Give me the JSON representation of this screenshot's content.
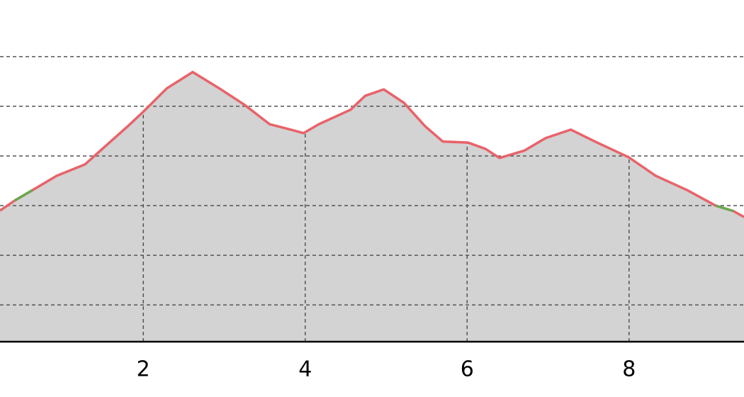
{
  "chart_data": {
    "type": "area",
    "x": [
      0.23,
      0.41,
      0.63,
      0.93,
      1.28,
      1.54,
      1.81,
      2.0,
      2.29,
      2.61,
      2.94,
      3.25,
      3.56,
      3.82,
      3.98,
      4.17,
      4.56,
      4.74,
      4.97,
      5.22,
      5.48,
      5.7,
      6.01,
      6.23,
      6.4,
      6.71,
      6.97,
      7.28,
      7.58,
      8.0,
      8.33,
      8.72,
      9.07,
      9.29,
      9.42
    ],
    "series": [
      {
        "color": "#e8636a",
        "values": [
          2.9,
          3.1,
          3.31,
          3.6,
          3.83,
          4.21,
          4.6,
          4.89,
          5.36,
          5.69,
          5.36,
          5.03,
          4.64,
          4.53,
          4.46,
          4.64,
          4.93,
          5.21,
          5.34,
          5.07,
          4.6,
          4.29,
          4.27,
          4.14,
          3.96,
          4.11,
          4.36,
          4.53,
          4.29,
          3.97,
          3.6,
          3.31,
          3.0,
          2.89,
          2.77
        ]
      },
      {
        "color": "#6aa84f",
        "values": [
          null,
          3.1,
          3.31,
          null,
          null,
          null,
          null,
          null,
          null,
          null,
          null,
          null,
          null,
          null,
          null,
          null,
          null,
          null,
          null,
          null,
          null,
          null,
          null,
          null,
          null,
          null,
          null,
          null,
          null,
          null,
          null,
          null,
          3.0,
          2.89,
          null
        ]
      }
    ],
    "fill": "#d3d3d3",
    "xlim": [
      0.23,
      9.42
    ],
    "ylim": [
      0.26,
      7.14
    ],
    "xticks": [
      2,
      4,
      6,
      8
    ],
    "yticks": [
      1,
      2,
      3,
      4,
      5,
      6
    ],
    "grid": true
  }
}
